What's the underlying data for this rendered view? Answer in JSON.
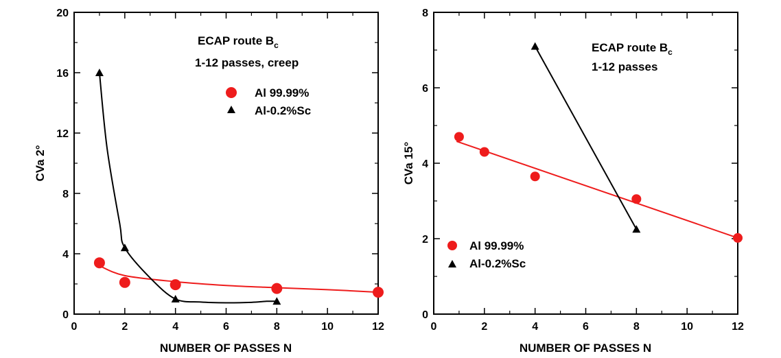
{
  "chart_data": [
    {
      "type": "scatter",
      "xlabel": "NUMBER OF PASSES N",
      "ylabel": "CVa 2°",
      "xlim": [
        0,
        12
      ],
      "ylim": [
        0,
        20
      ],
      "xticks": [
        0,
        2,
        4,
        6,
        8,
        10,
        12
      ],
      "yticks": [
        0,
        4,
        8,
        12,
        16,
        20
      ],
      "annotation": {
        "line1_main": "ECAP route B",
        "line1_sub": "c",
        "line2": "1-12 passes, creep"
      },
      "legend_position": "top-right",
      "series": [
        {
          "name": "Al 99.99%",
          "marker": "circle",
          "color": "#ee1c1c",
          "x": [
            1,
            2,
            4,
            8,
            12
          ],
          "y": [
            3.4,
            2.1,
            1.95,
            1.7,
            1.45
          ],
          "fit": {
            "type": "power",
            "x": [
              1,
              2,
              4,
              6,
              8,
              10,
              12
            ],
            "y": [
              3.2,
              2.55,
              2.15,
              1.9,
              1.75,
              1.62,
              1.45
            ]
          }
        },
        {
          "name": "Al-0.2%Sc",
          "marker": "triangle",
          "color": "#000000",
          "x": [
            1,
            2,
            4,
            8
          ],
          "y": [
            16,
            4.4,
            1.0,
            0.85
          ],
          "fit": {
            "type": "smooth",
            "x": [
              1,
              1.3,
              1.8,
              2,
              3,
              4,
              5,
              6,
              7,
              7.6,
              8
            ],
            "y": [
              16,
              11,
              6.0,
              4.4,
              2.4,
              1.0,
              0.8,
              0.75,
              0.78,
              0.85,
              0.85
            ]
          }
        }
      ]
    },
    {
      "type": "scatter",
      "xlabel": "NUMBER OF PASSES N",
      "ylabel": "CVa 15°",
      "xlim": [
        0,
        12
      ],
      "ylim": [
        0,
        8
      ],
      "xticks": [
        0,
        2,
        4,
        6,
        8,
        10,
        12
      ],
      "yticks": [
        0,
        2,
        4,
        6,
        8
      ],
      "annotation": {
        "line1_main": "ECAP route B",
        "line1_sub": "c",
        "line2": "1-12 passes"
      },
      "legend_position": "bottom-left",
      "series": [
        {
          "name": "Al 99.99%",
          "marker": "circle",
          "color": "#ee1c1c",
          "x": [
            1,
            2,
            4,
            8,
            12
          ],
          "y": [
            4.7,
            4.3,
            3.65,
            3.05,
            2.02
          ],
          "fit": {
            "type": "linear",
            "x": [
              0.9,
              12
            ],
            "y": [
              4.58,
              2.02
            ]
          }
        },
        {
          "name": "Al-0.2%Sc",
          "marker": "triangle",
          "color": "#000000",
          "x": [
            4,
            8
          ],
          "y": [
            7.1,
            2.25
          ],
          "fit": {
            "type": "linear",
            "x": [
              4,
              8
            ],
            "y": [
              7.1,
              2.25
            ]
          }
        }
      ]
    }
  ]
}
